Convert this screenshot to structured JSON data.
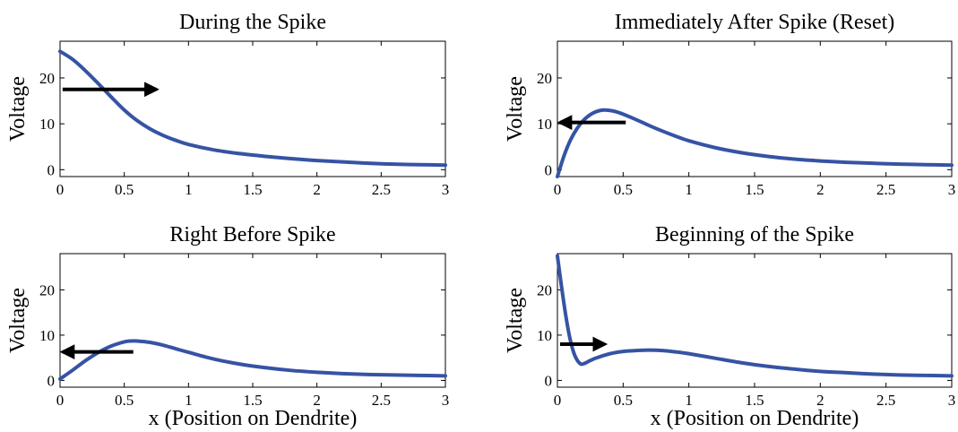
{
  "chart_data": [
    {
      "type": "line",
      "title": "During the Spike",
      "xlabel": "",
      "ylabel": "Voltage",
      "xlim": [
        0,
        3
      ],
      "ylim": [
        -1.5,
        28
      ],
      "xticks": [
        "0",
        "0.5",
        "1",
        "1.5",
        "2",
        "2.5",
        "3"
      ],
      "yticks": [
        "0",
        "10",
        "20"
      ],
      "series_color": "#3653a4",
      "x": [
        0,
        0.1,
        0.2,
        0.3,
        0.4,
        0.5,
        0.6,
        0.7,
        0.8,
        0.9,
        1.0,
        1.2,
        1.4,
        1.6,
        1.8,
        2.0,
        2.2,
        2.4,
        2.6,
        2.8,
        3.0
      ],
      "y": [
        25.8,
        24.0,
        21.5,
        18.7,
        15.8,
        13.0,
        10.7,
        8.9,
        7.5,
        6.4,
        5.5,
        4.3,
        3.5,
        2.9,
        2.4,
        2.0,
        1.7,
        1.4,
        1.2,
        1.1,
        1.0
      ],
      "arrow": {
        "direction": "right",
        "x_start": 0.02,
        "x_end": 0.75,
        "y": 17.5
      }
    },
    {
      "type": "line",
      "title": "Immediately After Spike (Reset)",
      "xlabel": "",
      "ylabel": "Voltage",
      "xlim": [
        0,
        3
      ],
      "ylim": [
        -1.5,
        28
      ],
      "xticks": [
        "0",
        "0.5",
        "1",
        "1.5",
        "2",
        "2.5",
        "3"
      ],
      "yticks": [
        "0",
        "10",
        "20"
      ],
      "series_color": "#3653a4",
      "x": [
        0,
        0.05,
        0.1,
        0.15,
        0.2,
        0.25,
        0.3,
        0.35,
        0.4,
        0.45,
        0.5,
        0.6,
        0.7,
        0.8,
        0.9,
        1.0,
        1.2,
        1.4,
        1.6,
        1.8,
        2.0,
        2.2,
        2.4,
        2.6,
        2.8,
        3.0
      ],
      "y": [
        -1.5,
        3.0,
        6.5,
        9.0,
        10.8,
        12.0,
        12.7,
        13.0,
        12.9,
        12.6,
        12.1,
        10.9,
        9.6,
        8.4,
        7.3,
        6.3,
        4.8,
        3.7,
        2.9,
        2.3,
        1.9,
        1.6,
        1.4,
        1.2,
        1.1,
        1.0
      ],
      "arrow": {
        "direction": "left",
        "x_start": 0.52,
        "x_end": 0.02,
        "y": 10.3
      }
    },
    {
      "type": "line",
      "title": "Right Before Spike",
      "xlabel": "x (Position on Dendrite)",
      "ylabel": "Voltage",
      "xlim": [
        0,
        3
      ],
      "ylim": [
        -1.5,
        28
      ],
      "xticks": [
        "0",
        "0.5",
        "1",
        "1.5",
        "2",
        "2.5",
        "3"
      ],
      "yticks": [
        "0",
        "10",
        "20"
      ],
      "series_color": "#3653a4",
      "x": [
        0,
        0.1,
        0.2,
        0.3,
        0.4,
        0.5,
        0.55,
        0.6,
        0.7,
        0.8,
        0.9,
        1.0,
        1.2,
        1.4,
        1.6,
        1.8,
        2.0,
        2.2,
        2.4,
        2.6,
        2.8,
        3.0
      ],
      "y": [
        0.3,
        2.3,
        4.4,
        6.2,
        7.6,
        8.5,
        8.7,
        8.7,
        8.4,
        7.8,
        7.0,
        6.2,
        4.7,
        3.6,
        2.8,
        2.2,
        1.8,
        1.5,
        1.3,
        1.2,
        1.1,
        1.0
      ],
      "arrow": {
        "direction": "left",
        "x_start": 0.57,
        "x_end": 0.02,
        "y": 6.3
      }
    },
    {
      "type": "line",
      "title": "Beginning of the Spike",
      "xlabel": "x (Position on Dendrite)",
      "ylabel": "Voltage",
      "xlim": [
        0,
        3
      ],
      "ylim": [
        -1.5,
        28
      ],
      "xticks": [
        "0",
        "0.5",
        "1",
        "1.5",
        "2",
        "2.5",
        "3"
      ],
      "yticks": [
        "0",
        "10",
        "20"
      ],
      "series_color": "#3653a4",
      "x": [
        0,
        0.03,
        0.06,
        0.09,
        0.12,
        0.15,
        0.18,
        0.21,
        0.25,
        0.3,
        0.4,
        0.5,
        0.6,
        0.7,
        0.8,
        0.9,
        1.0,
        1.2,
        1.4,
        1.6,
        1.8,
        2.0,
        2.2,
        2.4,
        2.6,
        2.8,
        3.0
      ],
      "y": [
        27.5,
        21.0,
        15.0,
        10.0,
        6.5,
        4.5,
        3.6,
        3.8,
        4.4,
        5.0,
        5.9,
        6.4,
        6.6,
        6.7,
        6.6,
        6.3,
        5.9,
        4.9,
        3.9,
        3.1,
        2.5,
        2.0,
        1.7,
        1.4,
        1.2,
        1.1,
        1.0
      ],
      "arrow": {
        "direction": "right",
        "x_start": 0.02,
        "x_end": 0.36,
        "y": 8.0
      }
    }
  ]
}
